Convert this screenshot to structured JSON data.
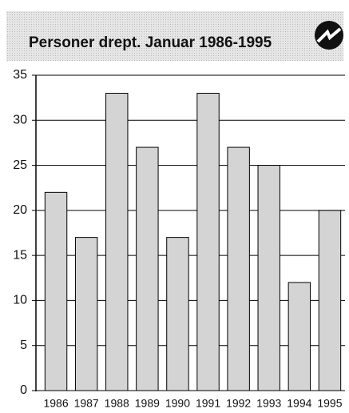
{
  "chart_data": {
    "type": "bar",
    "title": "Personer drept. Januar 1986-1995",
    "categories": [
      "1986",
      "1987",
      "1988",
      "1989",
      "1990",
      "1991",
      "1992",
      "1993",
      "1994",
      "1995"
    ],
    "values": [
      22,
      17,
      33,
      27,
      17,
      33,
      27,
      25,
      12,
      20
    ],
    "color": "#d4d4d4",
    "ylim": [
      0,
      35
    ],
    "yticks": [
      0,
      5,
      10,
      15,
      20,
      25,
      30,
      35
    ],
    "grid": true
  }
}
